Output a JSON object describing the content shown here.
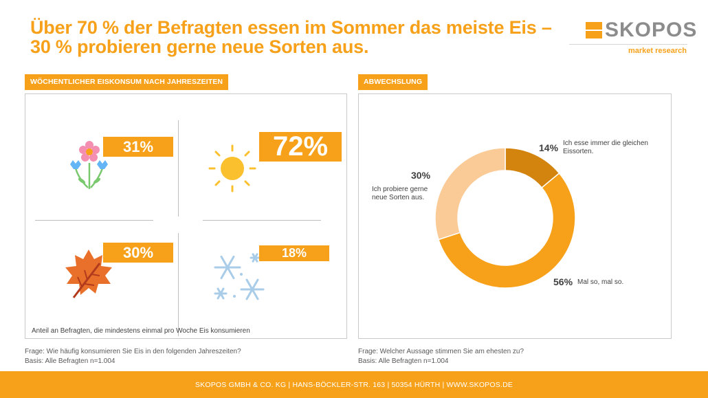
{
  "title": {
    "line1": "Über 70 % der Befragten essen im Sommer das meiste Eis –",
    "line2": "30 % probieren  gerne neue Sorten aus."
  },
  "logo": {
    "name": "SKOPOS",
    "sub": "market research"
  },
  "left": {
    "label": "WÖCHENTLICHER EISKONSUM NACH JAHRESZEITEN",
    "note": "Anteil an Befragten, die mindestens einmal pro Woche Eis konsumieren",
    "question": "Frage: Wie häufig konsumieren Sie Eis in den folgenden Jahreszeiten?",
    "basis": "Basis: Alle Befragten n=1.004"
  },
  "right": {
    "label": "ABWECHSLUNG",
    "question": "Frage: Welcher Aussage stimmen Sie am ehesten zu?",
    "basis": "Basis: Alle Befragten n=1.004"
  },
  "chart_data": [
    {
      "type": "bar",
      "categories": [
        "Frühling",
        "Sommer",
        "Herbst",
        "Winter"
      ],
      "values": [
        31,
        72,
        30,
        18
      ],
      "labels": [
        "31%",
        "72%",
        "30%",
        "18%"
      ],
      "icons": [
        "flower-icon",
        "sun-icon",
        "autumn-leaf-icon",
        "snowflake-icon"
      ]
    },
    {
      "type": "pie",
      "donut": true,
      "slices": [
        {
          "value": 14,
          "pct_label": "14%",
          "text": "Ich esse immer die gleichen Eissorten.",
          "color": "#D3840F"
        },
        {
          "value": 56,
          "pct_label": "56%",
          "text": "Mal so, mal so.",
          "color": "#F7A11A"
        },
        {
          "value": 30,
          "pct_label": "30%",
          "text": "Ich probiere gerne neue Sorten aus.",
          "color": "#FBCB97"
        }
      ]
    }
  ],
  "colors": {
    "accent": "#F7A11A",
    "dark_orange": "#D3840F",
    "light_orange": "#FBCB97"
  },
  "footer": "SKOPOS GMBH & CO. KG  |  HANS-BÖCKLER-STR. 163  |  50354 HÜRTH  |  WWW.SKOPOS.DE"
}
